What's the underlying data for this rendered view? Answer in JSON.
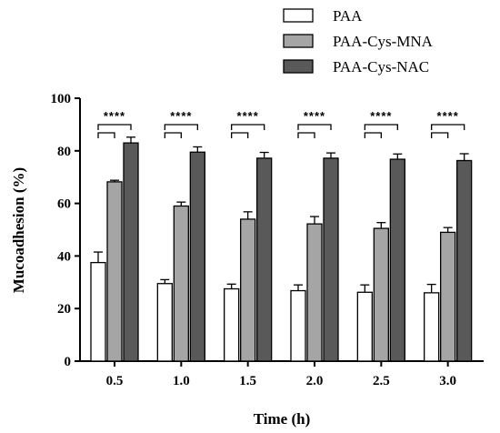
{
  "chart_data": {
    "type": "bar",
    "title": "",
    "xlabel": "Time (h)",
    "ylabel": "Mucoadhesion (%)",
    "ylim": [
      0,
      100
    ],
    "yticks": [
      "0",
      "20",
      "40",
      "60",
      "80",
      "100"
    ],
    "categories": [
      "0.5",
      "1.0",
      "1.5",
      "2.0",
      "2.5",
      "3.0"
    ],
    "series": [
      {
        "name": "PAA",
        "color": "#ffffff",
        "values": [
          37.5,
          29.5,
          27.5,
          26.8,
          26.2,
          26.0
        ],
        "errors": [
          4.0,
          1.5,
          1.8,
          2.2,
          2.8,
          3.2
        ]
      },
      {
        "name": "PAA-Cys-MNA",
        "color": "#a5a5a5",
        "values": [
          68.2,
          59.0,
          54.0,
          52.2,
          50.5,
          49.0
        ],
        "errors": [
          0.6,
          1.5,
          2.8,
          2.8,
          2.2,
          1.8
        ]
      },
      {
        "name": "PAA-Cys-NAC",
        "color": "#595959",
        "values": [
          83.0,
          79.5,
          77.2,
          77.2,
          76.8,
          76.3
        ],
        "errors": [
          2.2,
          2.0,
          2.2,
          2.0,
          2.0,
          2.6
        ]
      }
    ],
    "significance": [
      "****",
      "****",
      "****",
      "****",
      "****",
      "****"
    ],
    "legend_position": "top-right",
    "grid": false
  }
}
